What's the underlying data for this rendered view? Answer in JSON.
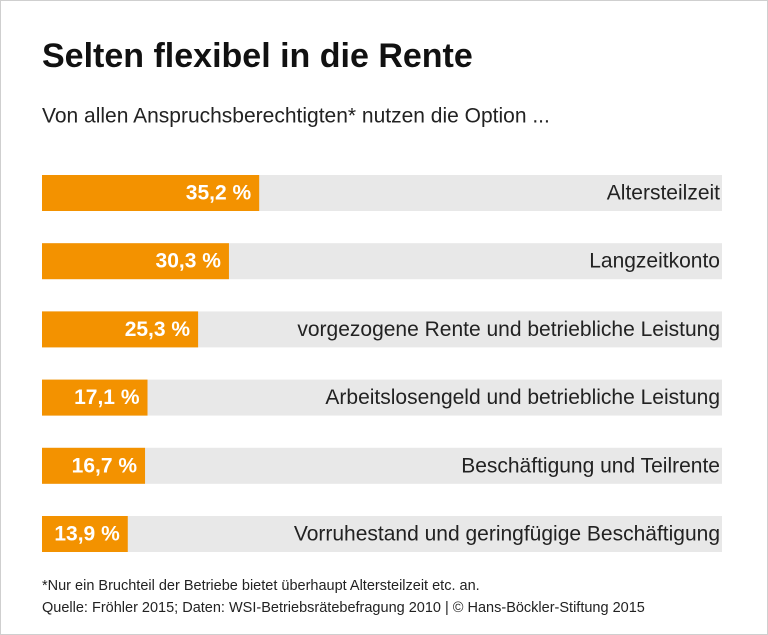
{
  "chart_data": {
    "type": "bar",
    "orientation": "horizontal",
    "title": "Selten flexibel in die Rente",
    "subtitle": "Von allen Anspruchsberechtigten* nutzen die Option ...",
    "categories": [
      "Altersteilzeit",
      "Langzeitkonto",
      "vorgezogene Rente und betriebliche Leistung",
      "Arbeitslosengeld und betriebliche Leistung",
      "Beschäftigung und Teilrente",
      "Vorruhestand und geringfügige Beschäftigung"
    ],
    "values": [
      35.2,
      30.3,
      25.3,
      17.1,
      16.7,
      13.9
    ],
    "value_labels": [
      "35,2 %",
      "30,3 %",
      "25,3 %",
      "17,1 %",
      "16,7 %",
      "13,9 %"
    ],
    "color": "#f39200",
    "footnote": "*Nur ein Bruchteil der Betriebe bietet überhaupt Altersteilzeit etc. an.",
    "source": "Quelle: Fröhler 2015; Daten: WSI-Betriebsrätebefragung 2010 | © Hans-Böckler-Stiftung 2015"
  }
}
